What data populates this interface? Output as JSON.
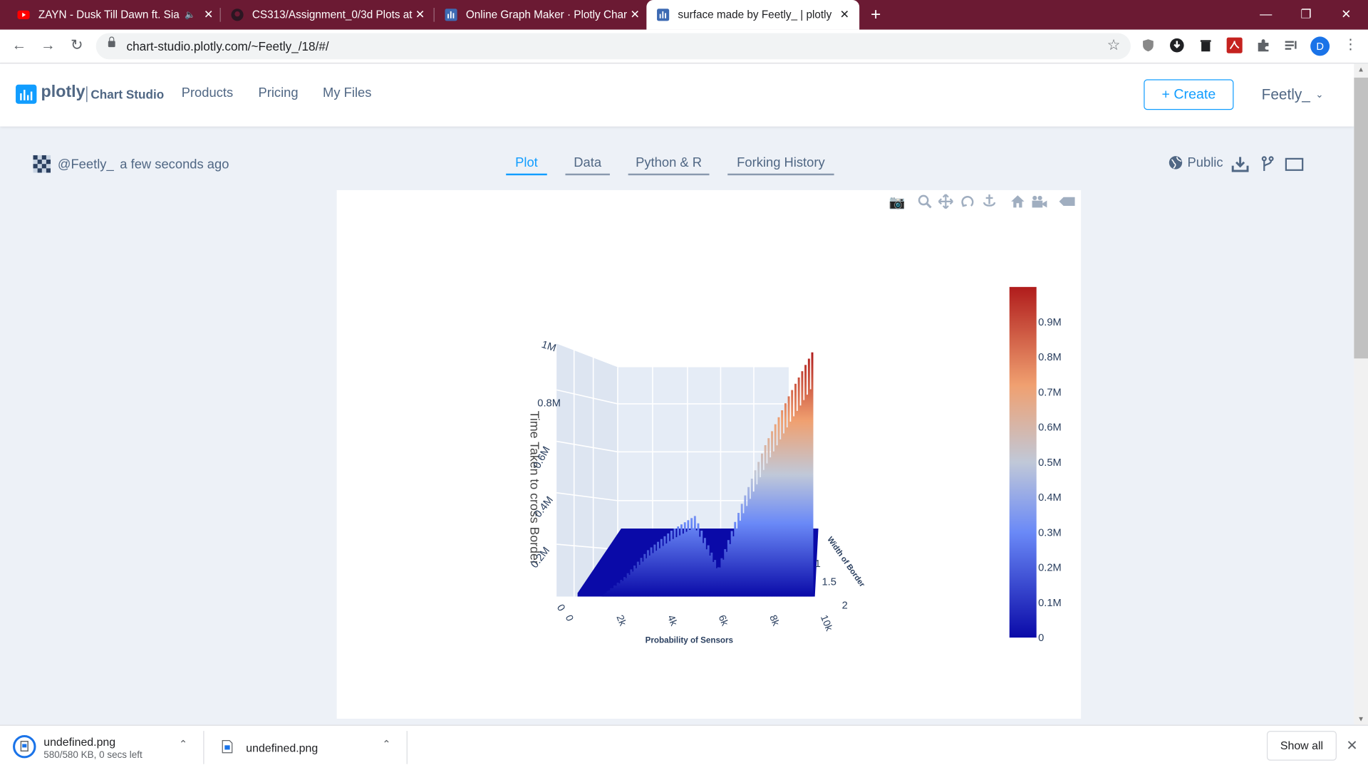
{
  "browser": {
    "tabs": [
      {
        "title": "ZAYN - Dusk Till Dawn ft. Sia",
        "audio": "🔈"
      },
      {
        "title": "CS313/Assignment_0/3d Plots at"
      },
      {
        "title": "Online Graph Maker · Plotly Char"
      },
      {
        "title": "surface made by Feetly_ | plotly"
      }
    ],
    "new_tab": "+",
    "close_glyph": "✕",
    "url": "chart-studio.plotly.com/~Feetly_/18/#/",
    "avatar_letter": "D"
  },
  "site": {
    "logo_word": "plotly",
    "logo_product": "Chart Studio",
    "nav": [
      "Products",
      "Pricing",
      "My Files"
    ],
    "create_label": "+ Create",
    "user": "Feetly_"
  },
  "plot_page": {
    "author": "@Feetly_",
    "time_ago": "a few seconds ago",
    "tabs": [
      "Plot",
      "Data",
      "Python & R",
      "Forking History"
    ],
    "visibility": "Public"
  },
  "chart_data": {
    "type": "surface",
    "title": "",
    "xlabel": "Probability of Sensors",
    "ylabel": "Width of Border",
    "zlabel": "Time Taken to cross Border",
    "x_ticks": [
      "0",
      "2k",
      "4k",
      "6k",
      "8k",
      "10k"
    ],
    "y_ticks": [
      "1",
      "1.5",
      "2"
    ],
    "z_ticks": [
      "0",
      "0.2M",
      "0.4M",
      "0.6M",
      "0.8M",
      "1M"
    ],
    "xlim": [
      0,
      10000
    ],
    "ylim": [
      1,
      2
    ],
    "zlim": [
      0,
      1000000
    ],
    "colorscale": [
      "#0a0aa8",
      "#6a89f7",
      "#c0c8d8",
      "#f0a070",
      "#b01c1c"
    ],
    "colorbar_ticks": [
      "0",
      "0.1M",
      "0.2M",
      "0.3M",
      "0.4M",
      "0.5M",
      "0.6M",
      "0.7M",
      "0.8M",
      "0.9M"
    ],
    "colorbar_range": [
      0,
      1000000
    ],
    "surface_profile": {
      "x": [
        0,
        1000,
        2000,
        3000,
        4000,
        5000,
        6000,
        7000,
        8000,
        9000,
        10000
      ],
      "z_max": [
        0,
        0,
        80000,
        190000,
        270000,
        330000,
        120000,
        380000,
        620000,
        820000,
        1000000
      ]
    }
  },
  "downloads": [
    {
      "name": "undefined.png",
      "status": "580/580 KB, 0 secs left"
    },
    {
      "name": "undefined.png"
    }
  ],
  "downloads_show_all": "Show all"
}
